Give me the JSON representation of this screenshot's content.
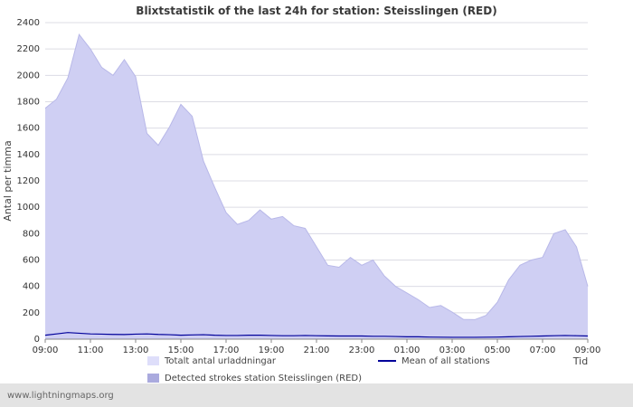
{
  "page": {
    "footer": "www.lightningmaps.org"
  },
  "legend": {
    "total_label": "Totalt antal urladdningar",
    "mean_label": "Mean of all stations",
    "detected_label": "Detected strokes station Steisslingen (RED)"
  },
  "colors": {
    "total_fill": "#dedefa",
    "detected_fill": "#cfcff3",
    "area_edge": "#b8b8e8",
    "mean_line": "#00009a",
    "grid": "#dcdce4",
    "axis": "#8a8a8a",
    "tick_text": "#333333"
  },
  "chart_data": {
    "type": "area",
    "title": "Blixtstatistik of the last 24h for station: Steisslingen (RED)",
    "ylabel": "Antal per timma",
    "xlabel": "Tid",
    "ylim": [
      0,
      2400
    ],
    "yticks": [
      0,
      200,
      400,
      600,
      800,
      1000,
      1200,
      1400,
      1600,
      1800,
      2000,
      2200,
      2400
    ],
    "xticks": [
      "09:00",
      "11:00",
      "13:00",
      "15:00",
      "17:00",
      "19:00",
      "21:00",
      "23:00",
      "01:00",
      "03:00",
      "05:00",
      "07:00",
      "09:00"
    ],
    "grid": "horizontal",
    "legend_position": "bottom",
    "x": [
      0,
      0.5,
      1,
      1.5,
      2,
      2.5,
      3,
      3.5,
      4,
      4.5,
      5,
      5.5,
      6,
      6.5,
      7,
      7.5,
      8,
      8.5,
      9,
      9.5,
      10,
      10.5,
      11,
      11.5,
      12,
      12.5,
      13,
      13.5,
      14,
      14.5,
      15,
      15.5,
      16,
      16.5,
      17,
      17.5,
      18,
      18.5,
      19,
      19.5,
      20,
      20.5,
      21,
      21.5,
      22,
      22.5,
      23,
      23.5,
      24
    ],
    "series": [
      {
        "name": "Totalt antal urladdningar",
        "kind": "area",
        "values": [
          1750,
          1820,
          1980,
          2310,
          2200,
          2060,
          2000,
          2120,
          1990,
          1560,
          1470,
          1610,
          1780,
          1690,
          1350,
          1150,
          960,
          870,
          900,
          980,
          910,
          930,
          860,
          840,
          700,
          560,
          545,
          620,
          560,
          600,
          480,
          400,
          350,
          300,
          240,
          255,
          205,
          150,
          148,
          180,
          280,
          450,
          560,
          600,
          620,
          800,
          830,
          700,
          400
        ]
      },
      {
        "name": "Detected strokes station Steisslingen (RED)",
        "kind": "area",
        "values": [
          1750,
          1820,
          1980,
          2310,
          2200,
          2060,
          2000,
          2120,
          1990,
          1560,
          1470,
          1610,
          1780,
          1690,
          1350,
          1150,
          960,
          870,
          900,
          980,
          910,
          930,
          860,
          840,
          700,
          560,
          545,
          620,
          560,
          600,
          480,
          400,
          350,
          300,
          240,
          255,
          205,
          150,
          148,
          180,
          280,
          450,
          560,
          600,
          620,
          800,
          830,
          700,
          400
        ]
      },
      {
        "name": "Mean of all stations",
        "kind": "line",
        "values": [
          30,
          40,
          50,
          45,
          40,
          38,
          36,
          35,
          38,
          40,
          36,
          34,
          30,
          32,
          34,
          30,
          28,
          28,
          30,
          30,
          28,
          26,
          26,
          28,
          26,
          25,
          24,
          24,
          24,
          22,
          22,
          20,
          18,
          18,
          16,
          15,
          14,
          14,
          14,
          15,
          16,
          18,
          20,
          22,
          24,
          26,
          28,
          26,
          24
        ]
      }
    ]
  }
}
